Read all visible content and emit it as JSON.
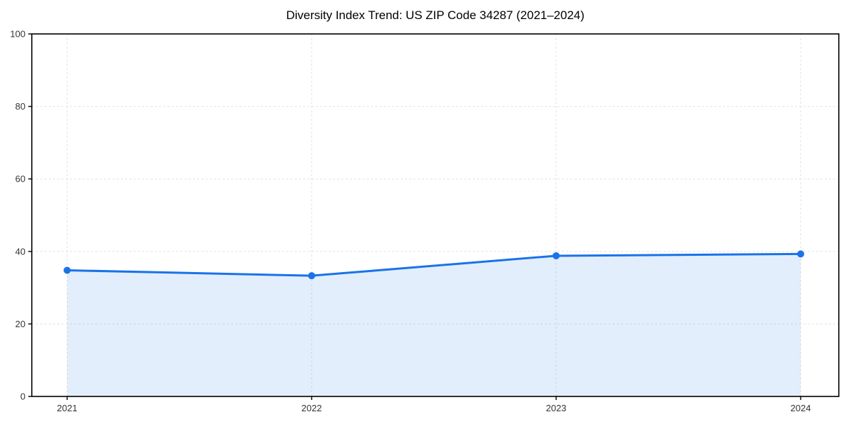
{
  "chart_data": {
    "type": "area",
    "title": "Diversity Index Trend: US ZIP Code 34287 (2021–2024)",
    "xlabel": "",
    "ylabel": "",
    "categories": [
      "2021",
      "2022",
      "2023",
      "2024"
    ],
    "series": [
      {
        "name": "Diversity Index",
        "values": [
          34.8,
          33.3,
          38.8,
          39.3
        ]
      }
    ],
    "ylim": [
      0,
      100
    ],
    "yticks": [
      0,
      20,
      40,
      60,
      80,
      100
    ],
    "grid": "dashed",
    "legend": "none",
    "colors": {
      "line": "#1a73e8",
      "fill": "#1a73e8",
      "fill_opacity": "0.12",
      "grid": "#e2e2e2",
      "spine": "#000000",
      "tick_label": "#333333",
      "background": "#ffffff"
    }
  }
}
